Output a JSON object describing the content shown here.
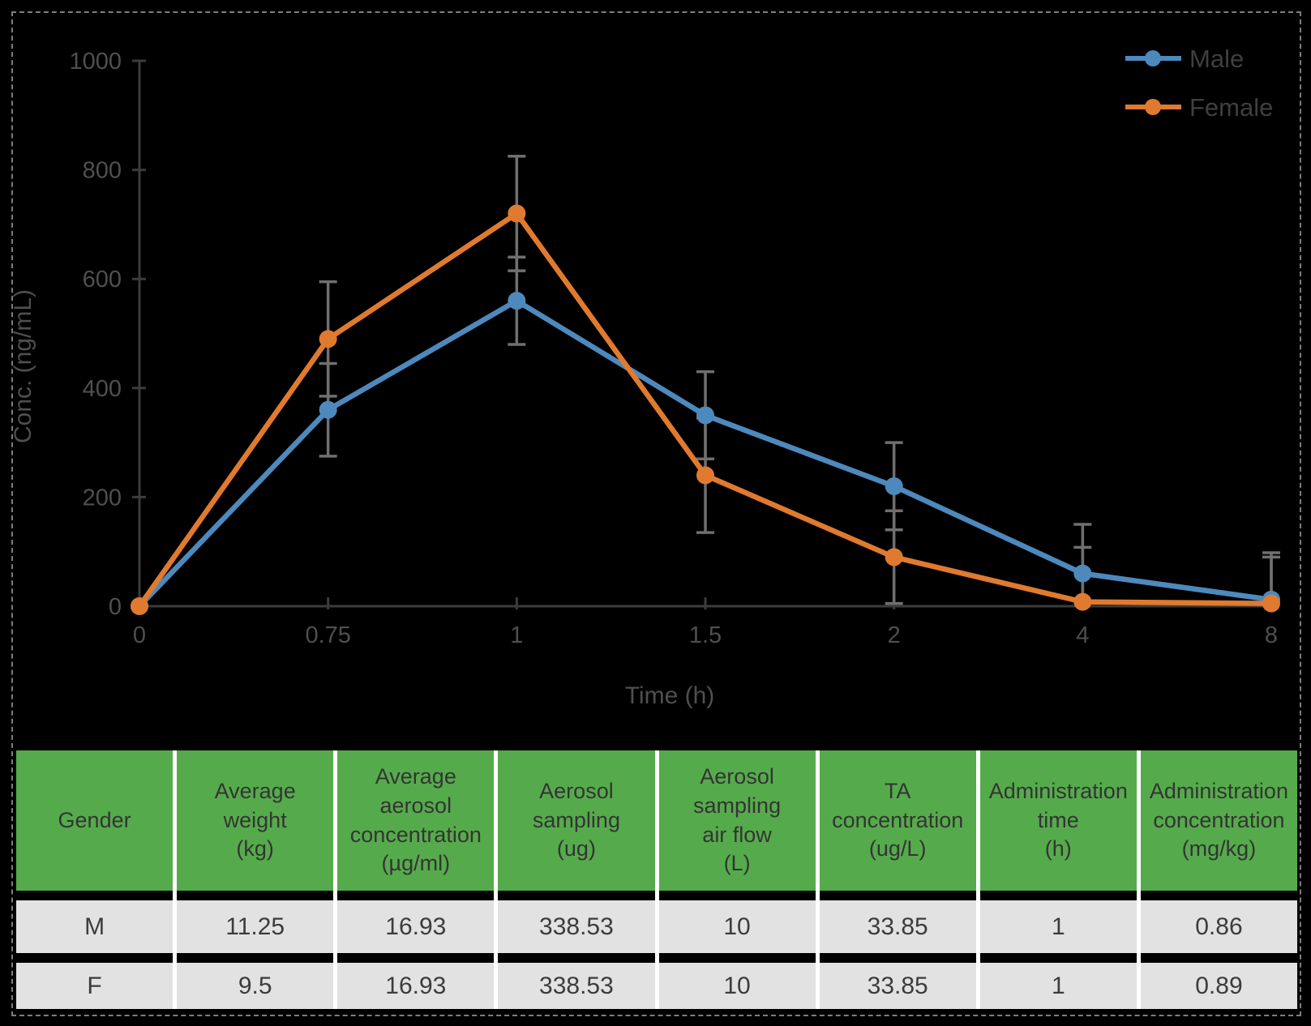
{
  "colors": {
    "background": "#000000",
    "male_series": "#4D89BD",
    "female_series": "#E07A2F",
    "error_bar": "#6F6F6F",
    "axis": "#3C3C3C",
    "tick_label": "#4F4F4F",
    "legend_text": "#3F3F3F",
    "table_header_bg": "#55AB4B",
    "table_header_text": "#343434",
    "table_row_bg": "#E2E2E2",
    "table_row_text": "#3C3C3C",
    "table_separator": "#FFFFFF",
    "figure_border": "#7D7D7D"
  },
  "chart_data": {
    "type": "line",
    "title": "",
    "categories": [
      "0",
      "0.75",
      "1",
      "1.5",
      "2",
      "4",
      "8"
    ],
    "series": [
      {
        "name": "Male",
        "color": "#4D89BD",
        "values": [
          0,
          360,
          560,
          350,
          220,
          60,
          12
        ],
        "errors": [
          0,
          85,
          80,
          80,
          80,
          90,
          86
        ]
      },
      {
        "name": "Female",
        "color": "#E07A2F",
        "values": [
          0,
          490,
          720,
          240,
          90,
          8,
          5
        ],
        "errors": [
          0,
          105,
          105,
          105,
          85,
          100,
          85
        ]
      }
    ],
    "xlabel": "Time (h)",
    "ylabel": "Conc. (ng/mL)",
    "ylim": [
      0,
      1000
    ],
    "yticks": [
      0,
      200,
      400,
      600,
      800,
      1000
    ],
    "grid": false,
    "error_bars": true,
    "legend_position": "top-right"
  },
  "table": {
    "headers": [
      "Gender",
      "Average\nweight\n(kg)",
      "Average\naerosol\nconcentration\n(µg/ml)",
      "Aerosol\nsampling\n(ug)",
      "Aerosol\nsampling\nair flow\n(L)",
      "TA\nconcentration\n(ug/L)",
      "Administration\ntime\n(h)",
      "Administration\nconcentration\n(mg/kg)"
    ],
    "rows": [
      [
        "M",
        "11.25",
        "16.93",
        "338.53",
        "10",
        "33.85",
        "1",
        "0.86"
      ],
      [
        "F",
        "9.5",
        "16.93",
        "338.53",
        "10",
        "33.85",
        "1",
        "0.89"
      ]
    ]
  }
}
